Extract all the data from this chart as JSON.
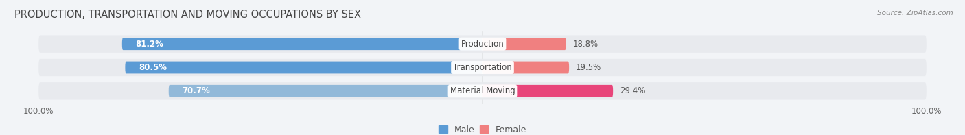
{
  "title": "PRODUCTION, TRANSPORTATION AND MOVING OCCUPATIONS BY SEX",
  "source": "Source: ZipAtlas.com",
  "categories": [
    "Production",
    "Transportation",
    "Material Moving"
  ],
  "male_values": [
    81.2,
    80.5,
    70.7
  ],
  "female_values": [
    18.8,
    19.5,
    29.4
  ],
  "male_color_prod": "#5b9bd5",
  "male_color_transp": "#5b9bd5",
  "male_color_moving": "#92b9d9",
  "female_color_prod": "#f08080",
  "female_color_transp": "#f08080",
  "female_color_moving": "#e8457a",
  "male_colors": [
    "#5b9bd5",
    "#5b9bd5",
    "#92b9d9"
  ],
  "female_colors": [
    "#f08080",
    "#f08080",
    "#e8457a"
  ],
  "bar_bg_color": "#e8eaee",
  "background_color": "#f2f4f7",
  "title_fontsize": 10.5,
  "label_fontsize": 8.5,
  "tick_fontsize": 8.5,
  "legend_fontsize": 9
}
